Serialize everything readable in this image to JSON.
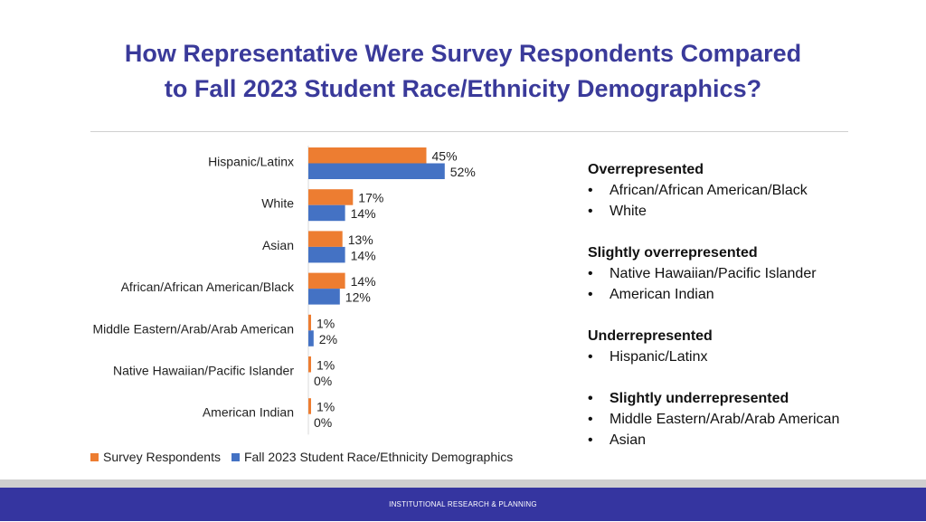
{
  "title_line1": "How Representative Were Survey Respondents Compared",
  "title_line2": "to Fall 2023 Student Race/Ethnicity Demographics?",
  "chart_data": {
    "type": "bar",
    "orientation": "horizontal",
    "categories": [
      "Hispanic/Latinx",
      "White",
      "Asian",
      "African/African American/Black",
      "Middle Eastern/Arab/Arab American",
      "Native Hawaiian/Pacific Islander",
      "American Indian"
    ],
    "series": [
      {
        "name": "Survey Respondents",
        "color": "#ed7d31",
        "values": [
          45,
          17,
          13,
          14,
          1,
          1,
          1
        ],
        "labels": [
          "45%",
          "17%",
          "13%",
          "14%",
          "1%",
          "1%",
          "1%"
        ]
      },
      {
        "name": "Fall 2023 Student Race/Ethnicity Demographics",
        "color": "#4472c4",
        "values": [
          52,
          14,
          14,
          12,
          2,
          0,
          0
        ],
        "labels": [
          "52%",
          "14%",
          "14%",
          "12%",
          "2%",
          "0%",
          "0%"
        ]
      }
    ],
    "xlim": [
      0,
      60
    ],
    "grid": false,
    "legend_position": "bottom"
  },
  "notes": [
    {
      "heading": "Overrepresented",
      "items": [
        "African/African American/Black",
        "White"
      ]
    },
    {
      "heading": "Slightly overrepresented",
      "items": [
        "Native Hawaiian/Pacific Islander",
        "American Indian"
      ]
    },
    {
      "heading": "Underrepresented",
      "items": [
        "Hispanic/Latinx"
      ]
    },
    {
      "heading": "",
      "items": [
        "Slightly underrepresented",
        "Middle Eastern/Arab/Arab American",
        "Asian"
      ]
    }
  ],
  "footer": "INSTITUTIONAL RESEARCH & PLANNING"
}
